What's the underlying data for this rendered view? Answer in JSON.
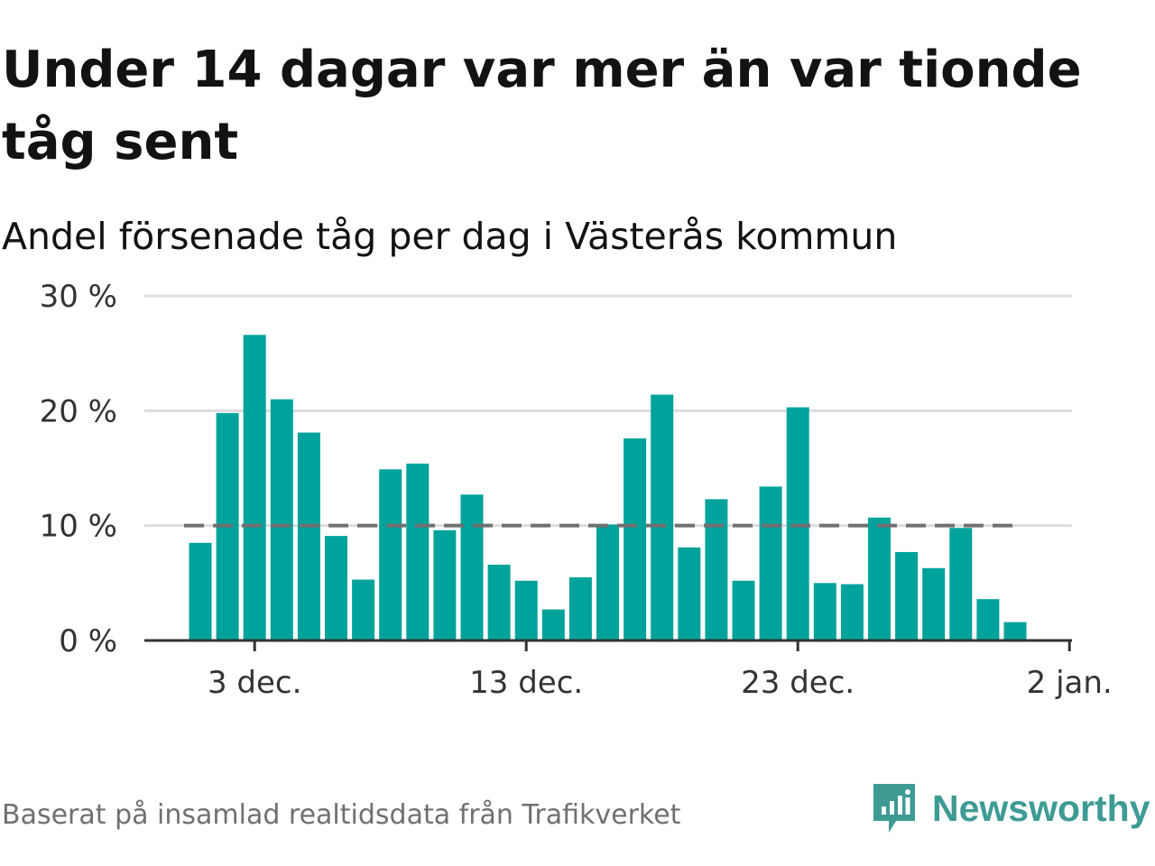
{
  "title": "Under 14 dagar var mer än var tionde tåg sent",
  "subtitle": "Andel försenade tåg per dag i Västerås kommun",
  "footer": "Baserat på insamlad realtidsdata från Trafikverket",
  "brand": {
    "name": "Newsworthy",
    "icon": "newsworthy-logo-icon",
    "color": "#3d9b94"
  },
  "colors": {
    "bar": "#00a39b",
    "reference_line": "#707070",
    "grid": "#dddddd",
    "axis": "#333333"
  },
  "chart_data": {
    "type": "bar",
    "xlabel": "",
    "ylabel": "",
    "ylim": [
      0,
      30
    ],
    "y_ticks": [
      "0 %",
      "10 %",
      "20 %",
      "30 %"
    ],
    "y_tick_values": [
      0,
      10,
      20,
      30
    ],
    "x_ticks": [
      "3 dec.",
      "13 dec.",
      "23 dec.",
      "2 jan."
    ],
    "x_tick_dates": [
      "2019-12-03",
      "2019-12-13",
      "2019-12-23",
      "2020-01-02"
    ],
    "grid": true,
    "x": [
      "2019-12-01",
      "2019-12-02",
      "2019-12-03",
      "2019-12-04",
      "2019-12-05",
      "2019-12-06",
      "2019-12-07",
      "2019-12-08",
      "2019-12-09",
      "2019-12-10",
      "2019-12-11",
      "2019-12-12",
      "2019-12-13",
      "2019-12-14",
      "2019-12-15",
      "2019-12-16",
      "2019-12-17",
      "2019-12-18",
      "2019-12-19",
      "2019-12-20",
      "2019-12-21",
      "2019-12-22",
      "2019-12-23",
      "2019-12-24",
      "2019-12-25",
      "2019-12-26",
      "2019-12-27",
      "2019-12-28",
      "2019-12-29",
      "2019-12-30",
      "2019-12-31"
    ],
    "values": [
      8.5,
      19.8,
      26.6,
      21.0,
      18.1,
      9.1,
      5.3,
      14.9,
      15.4,
      9.6,
      12.7,
      6.6,
      5.2,
      2.7,
      5.5,
      10.1,
      17.6,
      21.4,
      8.1,
      12.3,
      5.2,
      13.4,
      20.3,
      5.0,
      4.9,
      10.7,
      7.7,
      6.3,
      9.8,
      3.6,
      1.6
    ],
    "reference_line": 10
  }
}
